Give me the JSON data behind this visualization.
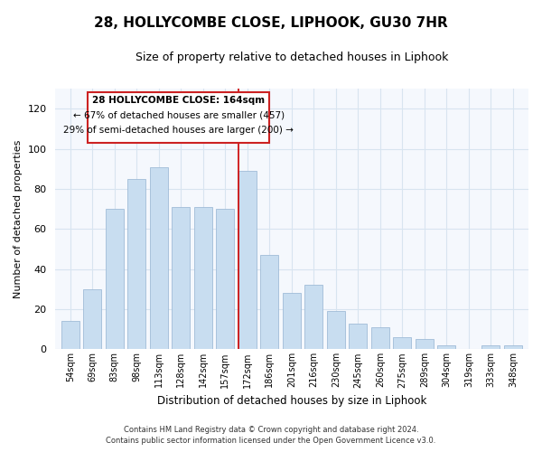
{
  "title": "28, HOLLYCOMBE CLOSE, LIPHOOK, GU30 7HR",
  "subtitle": "Size of property relative to detached houses in Liphook",
  "xlabel": "Distribution of detached houses by size in Liphook",
  "ylabel": "Number of detached properties",
  "bar_color": "#c8ddf0",
  "bar_edge_color": "#a0bcd8",
  "background_color": "#ffffff",
  "axes_background": "#f5f8fd",
  "grid_color": "#d8e4f0",
  "categories": [
    "54sqm",
    "69sqm",
    "83sqm",
    "98sqm",
    "113sqm",
    "128sqm",
    "142sqm",
    "157sqm",
    "172sqm",
    "186sqm",
    "201sqm",
    "216sqm",
    "230sqm",
    "245sqm",
    "260sqm",
    "275sqm",
    "289sqm",
    "304sqm",
    "319sqm",
    "333sqm",
    "348sqm"
  ],
  "values": [
    14,
    30,
    70,
    85,
    91,
    71,
    71,
    70,
    89,
    47,
    28,
    32,
    19,
    13,
    11,
    6,
    5,
    2,
    0,
    2,
    2
  ],
  "ylim": [
    0,
    130
  ],
  "yticks": [
    0,
    20,
    40,
    60,
    80,
    100,
    120
  ],
  "vline_color": "#cc0000",
  "annotation_title": "28 HOLLYCOMBE CLOSE: 164sqm",
  "annotation_line1": "← 67% of detached houses are smaller (457)",
  "annotation_line2": "29% of semi-detached houses are larger (200) →",
  "annotation_box_color": "#ffffff",
  "annotation_box_edge": "#cc2222",
  "footer_line1": "Contains HM Land Registry data © Crown copyright and database right 2024.",
  "footer_line2": "Contains public sector information licensed under the Open Government Licence v3.0."
}
